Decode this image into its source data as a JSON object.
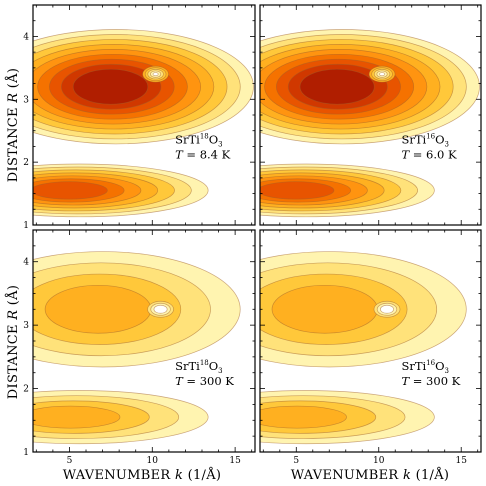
{
  "figure": {
    "xlabel_text": "WAVENUMBER ",
    "xlabel_var": "k",
    "xlabel_unit": " (1/Å)",
    "ylabel_text": "DISTANCE ",
    "ylabel_var": "R",
    "ylabel_unit": " (Å)"
  },
  "chart_data": [
    {
      "type": "heatmap",
      "panel": "top-left",
      "sample": {
        "base": "SrTi",
        "isotope": "18",
        "suffix": "O",
        "sub": "3"
      },
      "temperature": {
        "var": "T",
        "value": "= 8.4 K"
      },
      "x_ticks": [
        5,
        10,
        15
      ],
      "y_ticks": [
        1,
        2,
        3,
        4
      ],
      "xlim": [
        2.8,
        16.2
      ],
      "ylim": [
        1,
        4.5
      ],
      "peaks": [
        {
          "k": 7.8,
          "R": 3.2,
          "amp": 1.0
        },
        {
          "k": 5.6,
          "R": 1.55,
          "amp": 0.72
        }
      ],
      "hole": {
        "k": 10.2,
        "R": 3.4
      },
      "levels": 9
    },
    {
      "type": "heatmap",
      "panel": "top-right",
      "sample": {
        "base": "SrTi",
        "isotope": "16",
        "suffix": "O",
        "sub": "3"
      },
      "temperature": {
        "var": "T",
        "value": "= 6.0 K"
      },
      "x_ticks": [
        5,
        10,
        15
      ],
      "y_ticks": [
        1,
        2,
        3,
        4
      ],
      "xlim": [
        2.8,
        16.2
      ],
      "ylim": [
        1,
        4.5
      ],
      "peaks": [
        {
          "k": 7.8,
          "R": 3.2,
          "amp": 1.0
        },
        {
          "k": 5.6,
          "R": 1.55,
          "amp": 0.72
        }
      ],
      "hole": {
        "k": 10.2,
        "R": 3.4
      },
      "levels": 9
    },
    {
      "type": "heatmap",
      "panel": "bottom-left",
      "sample": {
        "base": "SrTi",
        "isotope": "18",
        "suffix": "O",
        "sub": "3"
      },
      "temperature": {
        "var": "T",
        "value": "= 300 K"
      },
      "x_ticks": [
        5,
        10,
        15
      ],
      "y_ticks": [
        1,
        2,
        3,
        4
      ],
      "xlim": [
        2.8,
        16.2
      ],
      "ylim": [
        1,
        4.5
      ],
      "peaks": [
        {
          "k": 7.0,
          "R": 3.25,
          "amp": 0.62
        },
        {
          "k": 5.6,
          "R": 1.55,
          "amp": 0.52
        }
      ],
      "hole": {
        "k": 10.5,
        "R": 3.25
      },
      "levels": 6
    },
    {
      "type": "heatmap",
      "panel": "bottom-right",
      "sample": {
        "base": "SrTi",
        "isotope": "16",
        "suffix": "O",
        "sub": "3"
      },
      "temperature": {
        "var": "T",
        "value": "= 300 K"
      },
      "x_ticks": [
        5,
        10,
        15
      ],
      "y_ticks": [
        1,
        2,
        3,
        4
      ],
      "xlim": [
        2.8,
        16.2
      ],
      "ylim": [
        1,
        4.5
      ],
      "peaks": [
        {
          "k": 7.0,
          "R": 3.25,
          "amp": 0.62
        },
        {
          "k": 5.6,
          "R": 1.55,
          "amp": 0.52
        }
      ],
      "hole": {
        "k": 10.5,
        "R": 3.25
      },
      "levels": 6
    }
  ],
  "palette": [
    "#fff4b0",
    "#ffe27a",
    "#ffc83a",
    "#ffb020",
    "#ff9410",
    "#f57200",
    "#e85400",
    "#d03800",
    "#b01e00",
    "#8a0c00"
  ],
  "line_color": "#a0602a"
}
